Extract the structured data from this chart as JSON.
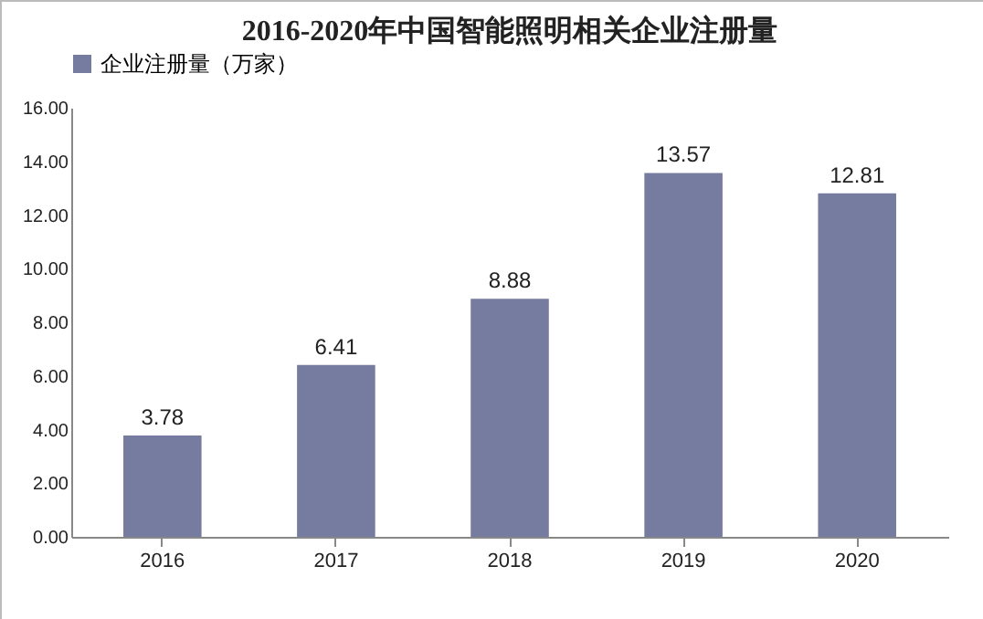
{
  "chart_data": {
    "type": "bar",
    "title": "2016-2020年中国智能照明相关企业注册量",
    "categories": [
      "2016",
      "2017",
      "2018",
      "2019",
      "2020"
    ],
    "series": [
      {
        "name": "企业注册量（万家）",
        "color": "#767ba0",
        "values": [
          3.78,
          6.41,
          8.88,
          13.57,
          12.81
        ]
      }
    ],
    "ylim": [
      0,
      16
    ],
    "yticks": [
      {
        "value": 0,
        "label": "0.00"
      },
      {
        "value": 2,
        "label": "2.00"
      },
      {
        "value": 4,
        "label": "4.00"
      },
      {
        "value": 6,
        "label": "6.00"
      },
      {
        "value": 8,
        "label": "8.00"
      },
      {
        "value": 10,
        "label": "10.00"
      },
      {
        "value": 12,
        "label": "12.00"
      },
      {
        "value": 14,
        "label": "14.00"
      },
      {
        "value": 16,
        "label": "16.00"
      }
    ],
    "data_labels": true,
    "legend": "top",
    "grid": false
  }
}
